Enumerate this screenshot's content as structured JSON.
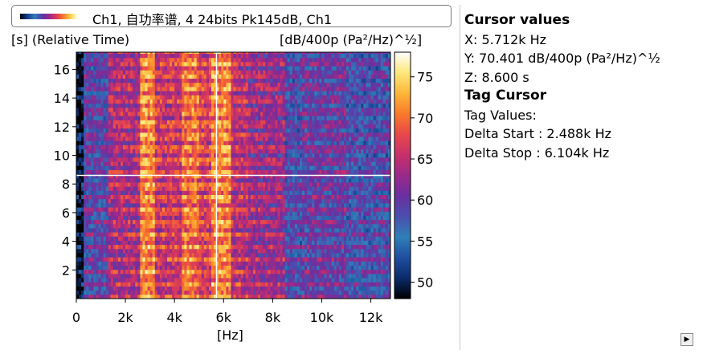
{
  "legend": {
    "text": "Ch1, 自功率谱, 4 24bits Pk145dB, Ch1"
  },
  "panel": {
    "cursor_title": "Cursor values",
    "cursor_x": "X: 5.712k Hz",
    "cursor_y": "Y: 70.401 dB/400p (Pa²/Hz)^½",
    "cursor_z": "Z: 8.600 s",
    "tag_title": "Tag Cursor",
    "tag_values": "Tag Values:",
    "delta_start": "Delta Start : 2.488k Hz",
    "delta_stop": "Delta Stop : 6.104k Hz"
  },
  "scroll_button_icon": "arrow-right-icon",
  "chart_data": {
    "type": "heatmap",
    "title": "",
    "xlabel": "[Hz]",
    "ylabel": "[s] (Relative Time)",
    "zlabel": "[dB/400p (Pa²/Hz)^½]",
    "xlim": [
      0,
      12800
    ],
    "ylim": [
      0,
      17.2
    ],
    "zlim": [
      48,
      78
    ],
    "x_ticks": [
      0,
      2000,
      4000,
      6000,
      8000,
      10000,
      12000
    ],
    "x_tick_labels": [
      "0",
      "2k",
      "4k",
      "6k",
      "8k",
      "10k",
      "12k"
    ],
    "y_ticks": [
      2,
      4,
      6,
      8,
      10,
      12,
      14,
      16
    ],
    "y_tick_labels": [
      "2",
      "4",
      "6",
      "8",
      "10",
      "12",
      "14",
      "16"
    ],
    "z_ticks": [
      50,
      55,
      60,
      65,
      70,
      75
    ],
    "z_tick_labels": [
      "50",
      "55",
      "60",
      "65",
      "70",
      "75"
    ],
    "cursor": {
      "x": 5712,
      "y": 8.6
    },
    "colormap": [
      "#000000",
      "#0a2a6a",
      "#1f4fa0",
      "#2f7fb8",
      "#4a4fae",
      "#6a2fa0",
      "#9a2a8a",
      "#c8306a",
      "#e8484a",
      "#f87a2a",
      "#fdb63a",
      "#fde87a",
      "#ffffff"
    ],
    "frequency_bands": [
      {
        "from": 0,
        "to": 250,
        "level": 49
      },
      {
        "from": 250,
        "to": 1300,
        "level": 59
      },
      {
        "from": 1300,
        "to": 2550,
        "level": 64
      },
      {
        "from": 2550,
        "to": 3200,
        "level": 71
      },
      {
        "from": 3200,
        "to": 4300,
        "level": 66
      },
      {
        "from": 4300,
        "to": 5000,
        "level": 70
      },
      {
        "from": 5000,
        "to": 5500,
        "level": 67
      },
      {
        "from": 5500,
        "to": 6300,
        "level": 71
      },
      {
        "from": 6300,
        "to": 7000,
        "level": 65
      },
      {
        "from": 7000,
        "to": 8500,
        "level": 63
      },
      {
        "from": 8500,
        "to": 9200,
        "level": 58
      },
      {
        "from": 9200,
        "to": 11000,
        "level": 60
      },
      {
        "from": 11000,
        "to": 12800,
        "level": 58
      }
    ]
  }
}
